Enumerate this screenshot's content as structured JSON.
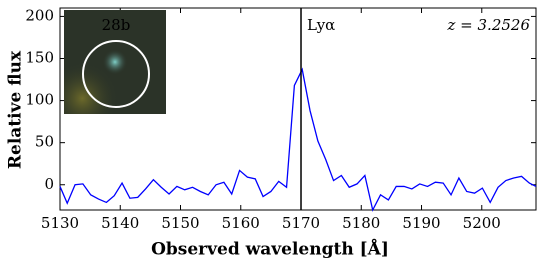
{
  "chart_data": {
    "type": "line",
    "xlabel": "Observed wavelength [Å]",
    "ylabel": "Relative flux",
    "annotations": {
      "line_label": "Lyα",
      "redshift": "z = 3.2526",
      "inset_label": "28b"
    },
    "vline": 5170,
    "x": [
      5130.0,
      5131.2,
      5132.5,
      5133.8,
      5135.1,
      5136.4,
      5137.7,
      5139.0,
      5140.3,
      5141.6,
      5142.9,
      5144.2,
      5145.5,
      5146.8,
      5148.1,
      5149.4,
      5150.7,
      5152.0,
      5153.3,
      5154.6,
      5155.9,
      5157.2,
      5158.5,
      5159.8,
      5161.1,
      5162.4,
      5163.7,
      5165.0,
      5166.3,
      5167.6,
      5168.9,
      5170.2,
      5171.5,
      5172.8,
      5174.1,
      5175.4,
      5176.7,
      5178.0,
      5179.3,
      5180.6,
      5181.9,
      5183.2,
      5184.5,
      5185.8,
      5187.1,
      5188.4,
      5189.7,
      5191.0,
      5192.3,
      5193.6,
      5194.9,
      5196.2,
      5197.5,
      5198.8,
      5200.1,
      5201.4,
      5202.7,
      5204.0,
      5205.3,
      5206.6,
      5207.9,
      5209.0
    ],
    "series": [
      {
        "color": "#0000ff",
        "values": [
          -2,
          -22,
          0,
          1,
          -12,
          -17,
          -21,
          -13,
          2,
          -16,
          -15,
          -5,
          6,
          -3,
          -11,
          -2,
          -6,
          -3,
          -8,
          -12,
          0,
          3,
          -11,
          17,
          9,
          7,
          -14,
          -8,
          4,
          -3,
          118,
          137,
          88,
          52,
          30,
          5,
          11,
          -3,
          1,
          11,
          -30,
          -12,
          -18,
          -2,
          -2,
          -5,
          1,
          -2,
          3,
          2,
          -12,
          8,
          -8,
          -10,
          -4,
          -21,
          -3,
          5,
          8,
          10,
          2,
          -2
        ]
      }
    ],
    "xlim": [
      5130,
      5209
    ],
    "ylim": [
      -30,
      210
    ],
    "xticks": [
      5130,
      5140,
      5150,
      5160,
      5170,
      5180,
      5190,
      5200
    ],
    "yticks": [
      0,
      50,
      100,
      150,
      200
    ]
  }
}
